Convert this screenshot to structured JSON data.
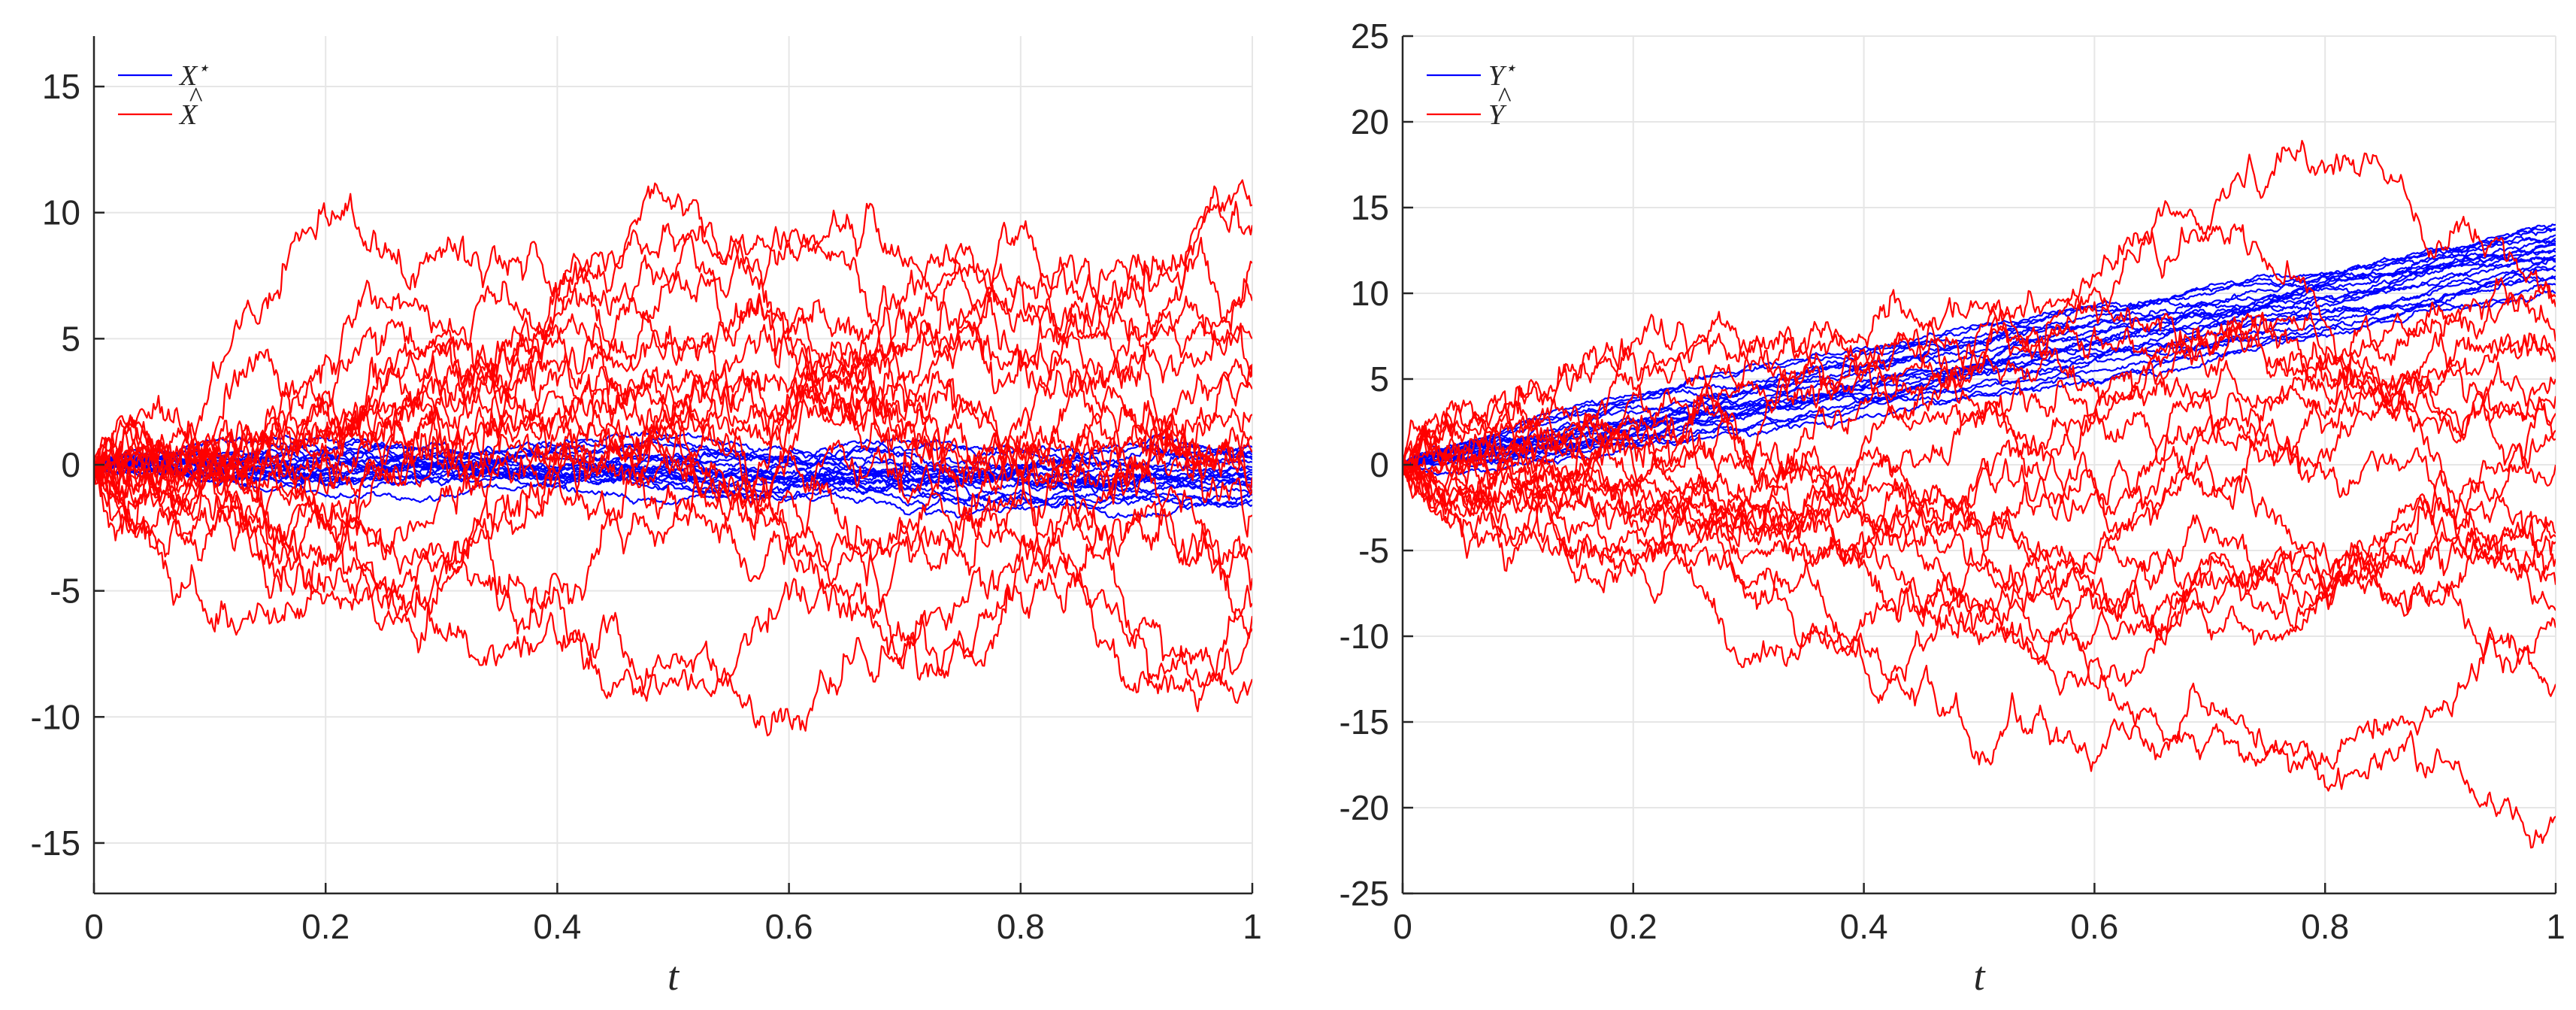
{
  "chart_data": [
    {
      "type": "line",
      "panel": "left",
      "title": "",
      "xlabel": "t",
      "ylabel": "",
      "xlim": [
        0,
        1
      ],
      "ylim": [
        -17,
        17
      ],
      "xticks": [
        0,
        0.2,
        0.4,
        0.6,
        0.8,
        1
      ],
      "xtick_labels": [
        "0",
        "0.2",
        "0.4",
        "0.6",
        "0.8",
        "1"
      ],
      "yticks": [
        -15,
        -10,
        -5,
        0,
        5,
        10,
        15
      ],
      "ytick_labels": [
        "-15",
        "-10",
        "-5",
        "0",
        "5",
        "10",
        "15"
      ],
      "grid": true,
      "legend_position": "top-left",
      "legend": [
        {
          "label": "X",
          "accent": "⋆",
          "color": "#0000ff"
        },
        {
          "label": "X",
          "accent": "^",
          "color": "#ff0000"
        }
      ],
      "series": [
        {
          "name": "X⋆",
          "color": "#0000ff",
          "count": 20,
          "seed": 11,
          "volatility": 1.4,
          "end_values": [
            0.7,
            0.5,
            0.3,
            -0.2,
            -0.4,
            -0.6,
            -0.8,
            -1.0,
            -1.2,
            -1.4,
            -1.6,
            0.1,
            -0.1,
            -0.3,
            0.2,
            -0.5,
            -0.9,
            -1.1,
            0.4,
            -0.7
          ]
        },
        {
          "name": "X̂",
          "color": "#ff0000",
          "count": 20,
          "seed": 3,
          "volatility": 7.5,
          "end_values": [
            9.5,
            8.0,
            6.5,
            4.0,
            3.5,
            3.0,
            2.0,
            0.5,
            -1.0,
            -2.0,
            -3.5,
            -4.5,
            -5.5,
            -6.0,
            -6.5,
            -8.5,
            1.0,
            -0.5,
            5.0,
            10.3
          ]
        }
      ]
    },
    {
      "type": "line",
      "panel": "right",
      "title": "",
      "xlabel": "t",
      "ylabel": "",
      "xlim": [
        0,
        1
      ],
      "ylim": [
        -25,
        25
      ],
      "xticks": [
        0,
        0.2,
        0.4,
        0.6,
        0.8,
        1
      ],
      "xtick_labels": [
        "0",
        "0.2",
        "0.4",
        "0.6",
        "0.8",
        "1"
      ],
      "yticks": [
        -25,
        -20,
        -15,
        -10,
        -5,
        0,
        5,
        10,
        15,
        20,
        25
      ],
      "ytick_labels": [
        "-25",
        "-20",
        "-15",
        "-10",
        "-5",
        "0",
        "5",
        "10",
        "15",
        "20",
        "25"
      ],
      "grid": true,
      "legend_position": "top-left",
      "legend": [
        {
          "label": "Y",
          "accent": "⋆",
          "color": "#0000ff"
        },
        {
          "label": "Y",
          "accent": "^",
          "color": "#ff0000"
        }
      ],
      "series": [
        {
          "name": "Y⋆",
          "color": "#0000ff",
          "count": 20,
          "seed": 21,
          "volatility": 1.6,
          "end_values": [
            14.0,
            13.7,
            13.4,
            13.2,
            13.0,
            12.8,
            12.6,
            12.4,
            12.2,
            12.0,
            11.8,
            11.6,
            11.3,
            11.0,
            10.5,
            10.0,
            13.8,
            12.9,
            11.9,
            10.8
          ]
        },
        {
          "name": "Ŷ",
          "color": "#ff0000",
          "count": 20,
          "seed": 7,
          "volatility": 9.0,
          "end_values": [
            9.8,
            9.2,
            7.2,
            6.3,
            5.0,
            4.0,
            3.0,
            2.0,
            1.5,
            0.0,
            -4.0,
            -4.5,
            -5.5,
            -7.0,
            -8.5,
            -9.5,
            -12.8,
            -20.5,
            6.0,
            -4.2
          ]
        }
      ]
    }
  ]
}
